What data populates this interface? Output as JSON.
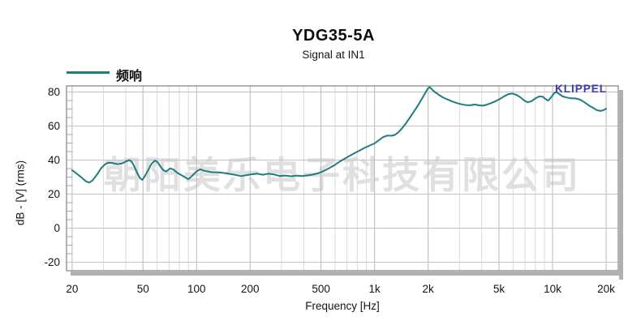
{
  "title": "YDG35-5A",
  "subtitle": "Signal at IN1",
  "brand": "KLIPPEL",
  "watermark": "朝阳美乐电子科技有限公司",
  "legend": {
    "label": "频响"
  },
  "colors": {
    "curve": "#1d7e7b",
    "brand_blue": "#3a3aad",
    "grid_major_v": "#b9b9b9",
    "grid_major_h": "#c2c2c2",
    "grid_minor": "#dadada",
    "minor_tick": "#a8a8a8",
    "frame": "#8a8a8a",
    "frame_shadow": "#b0b0b0",
    "watermark_gray": "#e0e0e0",
    "text": "#141414"
  },
  "chart_data": {
    "type": "line",
    "title": "YDG35-5A",
    "subtitle": "Signal at IN1",
    "series_name": "频响",
    "xlabel": "Frequency [Hz]",
    "ylabel": "dB - [V]  (rms)",
    "x_scale": "log",
    "x_range": [
      18.6,
      23400
    ],
    "y_range": [
      -25,
      83.6
    ],
    "x_ticks": [
      20,
      50,
      100,
      200,
      500,
      1000,
      2000,
      5000,
      10000,
      20000
    ],
    "x_tick_labels": [
      "20",
      "50",
      "100",
      "200",
      "500",
      "1k",
      "2k",
      "5k",
      "10k",
      "20k"
    ],
    "x_minor": [
      30,
      40,
      60,
      70,
      80,
      90,
      300,
      400,
      600,
      700,
      800,
      900,
      3000,
      4000,
      6000,
      7000,
      8000,
      9000
    ],
    "y_ticks": [
      -20,
      0,
      20,
      40,
      60,
      80
    ],
    "y_tick_labels": [
      "-20",
      "0",
      "20",
      "40",
      "60",
      "80"
    ],
    "y_minor_step": 5,
    "grid": true,
    "legend_position": "top-left",
    "points": [
      [
        20,
        34.0
      ],
      [
        21,
        32.4
      ],
      [
        22.5,
        29.9
      ],
      [
        24,
        27.4
      ],
      [
        25,
        26.8
      ],
      [
        26,
        28.0
      ],
      [
        27.5,
        31.3
      ],
      [
        29,
        35.0
      ],
      [
        30.5,
        37.4
      ],
      [
        32,
        38.5
      ],
      [
        34,
        38.2
      ],
      [
        36,
        37.6
      ],
      [
        38,
        37.9
      ],
      [
        40,
        39.2
      ],
      [
        42,
        40.0
      ],
      [
        43.5,
        38.7
      ],
      [
        45,
        35.6
      ],
      [
        46.5,
        32.2
      ],
      [
        48,
        29.6
      ],
      [
        49.5,
        28.4
      ],
      [
        51,
        30.2
      ],
      [
        53.5,
        34.2
      ],
      [
        56,
        38.0
      ],
      [
        58.5,
        39.8
      ],
      [
        60.5,
        38.7
      ],
      [
        62.5,
        36.4
      ],
      [
        65,
        34.1
      ],
      [
        67.5,
        33.3
      ],
      [
        71,
        35.1
      ],
      [
        74,
        34.5
      ],
      [
        78,
        32.5
      ],
      [
        82,
        31.2
      ],
      [
        86,
        30.0
      ],
      [
        90,
        28.8
      ],
      [
        94.5,
        30.8
      ],
      [
        99.5,
        33.2
      ],
      [
        105,
        34.6
      ],
      [
        111,
        33.7
      ],
      [
        122,
        32.9
      ],
      [
        135,
        32.8
      ],
      [
        150,
        32.1
      ],
      [
        165,
        31.3
      ],
      [
        178,
        30.6
      ],
      [
        192,
        31.2
      ],
      [
        205,
        31.7
      ],
      [
        220,
        32.0
      ],
      [
        235,
        31.4
      ],
      [
        253,
        32.0
      ],
      [
        272,
        31.6
      ],
      [
        292,
        30.7
      ],
      [
        315,
        30.9
      ],
      [
        340,
        30.5
      ],
      [
        365,
        30.9
      ],
      [
        392,
        30.6
      ],
      [
        420,
        31.0
      ],
      [
        450,
        31.5
      ],
      [
        480,
        32.2
      ],
      [
        515,
        33.5
      ],
      [
        555,
        35.2
      ],
      [
        600,
        37.3
      ],
      [
        650,
        39.7
      ],
      [
        705,
        41.8
      ],
      [
        760,
        43.7
      ],
      [
        820,
        45.5
      ],
      [
        880,
        47.2
      ],
      [
        940,
        48.6
      ],
      [
        1000,
        49.8
      ],
      [
        1060,
        51.8
      ],
      [
        1120,
        53.6
      ],
      [
        1180,
        54.4
      ],
      [
        1240,
        54.3
      ],
      [
        1300,
        54.8
      ],
      [
        1360,
        56.3
      ],
      [
        1430,
        58.8
      ],
      [
        1500,
        61.6
      ],
      [
        1580,
        65.0
      ],
      [
        1660,
        68.3
      ],
      [
        1750,
        72.0
      ],
      [
        1840,
        75.8
      ],
      [
        1920,
        79.2
      ],
      [
        1990,
        82.0
      ],
      [
        2040,
        82.9
      ],
      [
        2100,
        81.6
      ],
      [
        2180,
        80.0
      ],
      [
        2300,
        78.3
      ],
      [
        2420,
        76.9
      ],
      [
        2560,
        75.7
      ],
      [
        2720,
        74.5
      ],
      [
        2900,
        73.5
      ],
      [
        3080,
        72.8
      ],
      [
        3270,
        72.3
      ],
      [
        3460,
        72.2
      ],
      [
        3650,
        72.7
      ],
      [
        3850,
        72.2
      ],
      [
        4050,
        72.0
      ],
      [
        4280,
        72.6
      ],
      [
        4520,
        73.5
      ],
      [
        4780,
        74.6
      ],
      [
        5050,
        75.9
      ],
      [
        5350,
        77.5
      ],
      [
        5650,
        78.8
      ],
      [
        5950,
        79.1
      ],
      [
        6250,
        78.4
      ],
      [
        6600,
        76.9
      ],
      [
        6950,
        75.0
      ],
      [
        7250,
        74.0
      ],
      [
        7600,
        74.6
      ],
      [
        8000,
        76.2
      ],
      [
        8400,
        77.4
      ],
      [
        8800,
        77.3
      ],
      [
        9150,
        75.8
      ],
      [
        9450,
        75.0
      ],
      [
        9800,
        76.8
      ],
      [
        10200,
        79.3
      ],
      [
        10500,
        80.1
      ],
      [
        10900,
        78.8
      ],
      [
        11400,
        77.4
      ],
      [
        12000,
        76.8
      ],
      [
        12700,
        76.3
      ],
      [
        13500,
        76.2
      ],
      [
        14300,
        75.5
      ],
      [
        15100,
        74.0
      ],
      [
        16000,
        72.1
      ],
      [
        16900,
        70.7
      ],
      [
        17700,
        69.4
      ],
      [
        18500,
        68.9
      ],
      [
        19300,
        69.3
      ],
      [
        20000,
        70.2
      ]
    ]
  }
}
